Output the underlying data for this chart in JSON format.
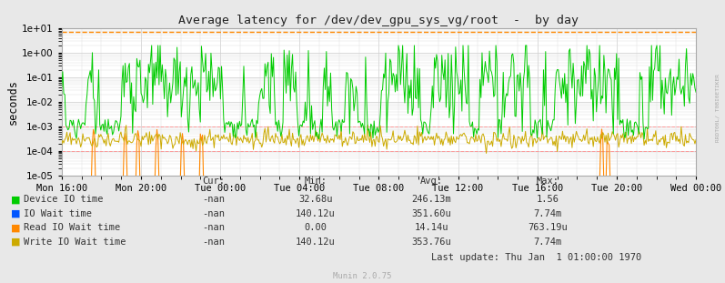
{
  "title": "Average latency for /dev/dev_gpu_sys_vg/root  -  by day",
  "ylabel": "seconds",
  "bg_color": "#e8e8e8",
  "plot_bg_color": "#ffffff",
  "grid_major_color": "#cccccc",
  "grid_minor_color": "#dddddd",
  "border_color": "#aaaaaa",
  "dashed_top_color": "#ff8800",
  "dashed_ref_color": "#ff9999",
  "x_tick_labels": [
    "Mon 16:00",
    "Mon 20:00",
    "Tue 00:00",
    "Tue 04:00",
    "Tue 08:00",
    "Tue 12:00",
    "Tue 16:00",
    "Tue 20:00",
    "Wed 00:00"
  ],
  "ylim_min": 1e-05,
  "ylim_max": 10.0,
  "green_color": "#00cc00",
  "blue_color": "#0055ff",
  "orange_color": "#ff8800",
  "gold_color": "#ccaa00",
  "legend_items": [
    {
      "label": "Device IO time",
      "color": "#00cc00"
    },
    {
      "label": "IO Wait time",
      "color": "#0055ff"
    },
    {
      "label": "Read IO Wait time",
      "color": "#ff8800"
    },
    {
      "label": "Write IO Wait time",
      "color": "#ccaa00"
    }
  ],
  "col_headers": [
    "Cur:",
    "Min:",
    "Avg:",
    "Max:"
  ],
  "legend_data": [
    [
      "-nan",
      "32.68u",
      "246.13m",
      "1.56"
    ],
    [
      "-nan",
      "140.12u",
      "351.60u",
      "7.74m"
    ],
    [
      "-nan",
      "0.00",
      "14.14u",
      "763.19u"
    ],
    [
      "-nan",
      "140.12u",
      "353.76u",
      "7.74m"
    ]
  ],
  "munin_text": "Munin 2.0.75",
  "last_update_text": "Last update: Thu Jan  1 01:00:00 1970",
  "watermark": "RRDT00L/ T0BI0ETIKER",
  "n_points": 600
}
